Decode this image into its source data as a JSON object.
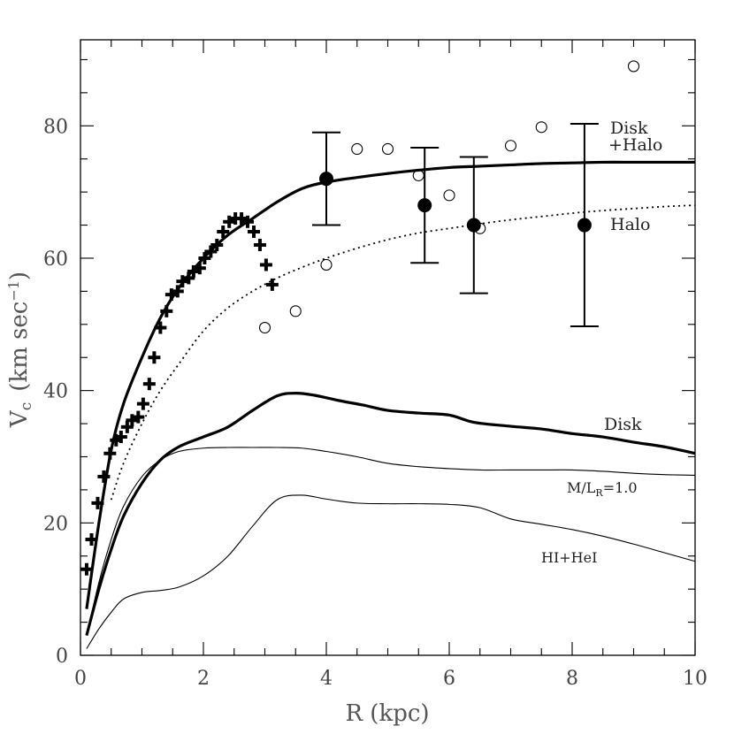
{
  "chart_data": {
    "type": "scatter",
    "xlabel": "R (kpc)",
    "ylabel_main": "V",
    "ylabel_sub": "c",
    "ylabel_unit": "(km sec",
    "ylabel_exp": "−1",
    "ylabel_close": ")",
    "xlim": [
      0,
      10
    ],
    "ylim": [
      0,
      93
    ],
    "x_ticks": [
      0,
      2,
      4,
      6,
      8,
      10
    ],
    "x_tick_labels": [
      "0",
      "2",
      "4",
      "6",
      "8",
      "10"
    ],
    "y_ticks": [
      0,
      20,
      40,
      60,
      80
    ],
    "y_tick_labels": [
      "0",
      "20",
      "40",
      "60",
      "80"
    ],
    "grid": false,
    "series": [
      {
        "name": "Disk +Halo",
        "style": "thick-solid",
        "x": [
          0.1,
          0.3,
          0.5,
          0.7,
          1.0,
          1.3,
          1.6,
          2.0,
          2.4,
          2.8,
          3.2,
          3.6,
          4.0,
          4.5,
          5.0,
          5.5,
          6.0,
          6.5,
          7.0,
          7.5,
          8.0,
          8.5,
          9.0,
          9.5,
          10.0
        ],
        "y": [
          7,
          20,
          31,
          38,
          45,
          51,
          55.5,
          60,
          63.5,
          66,
          68.5,
          70.5,
          71.5,
          72.2,
          72.8,
          73.3,
          73.7,
          73.9,
          74.1,
          74.3,
          74.4,
          74.5,
          74.5,
          74.5,
          74.5
        ]
      },
      {
        "name": "Halo",
        "style": "dotted",
        "x": [
          0.5,
          0.7,
          1.0,
          1.3,
          1.6,
          2.0,
          2.4,
          2.8,
          3.2,
          3.6,
          4.0,
          4.5,
          5.0,
          5.5,
          6.0,
          6.5,
          7.0,
          7.5,
          8.0,
          8.5,
          9.0,
          9.5,
          10.0
        ],
        "y": [
          23.5,
          29,
          35,
          40,
          44,
          49,
          52.5,
          55,
          57,
          58.6,
          60,
          61.5,
          62.8,
          63.8,
          64.5,
          65.2,
          65.8,
          66.3,
          66.8,
          67.2,
          67.5,
          67.8,
          68
        ]
      },
      {
        "name": "Disk",
        "style": "thick-solid",
        "x": [
          0.1,
          0.3,
          0.5,
          0.7,
          1.0,
          1.3,
          1.6,
          2.0,
          2.4,
          2.8,
          3.2,
          3.5,
          3.8,
          4.2,
          4.6,
          5.0,
          5.5,
          6.0,
          6.4,
          7.0,
          7.5,
          8.0,
          8.5,
          9.0,
          9.5,
          10.0
        ],
        "y": [
          3,
          10,
          16,
          21,
          26,
          29.5,
          31.5,
          33,
          34.5,
          37,
          39.2,
          39.6,
          39.3,
          38.5,
          37.8,
          37,
          36.6,
          36.3,
          35.2,
          34.6,
          34.2,
          33.5,
          33,
          32.2,
          31.5,
          30.5
        ]
      },
      {
        "name": "M/L_R=1.0",
        "style": "thin-solid",
        "x": [
          0.1,
          0.3,
          0.5,
          0.7,
          1.0,
          1.3,
          1.6,
          2.0,
          2.4,
          2.8,
          3.2,
          3.6,
          4.0,
          4.5,
          5.0,
          5.5,
          6.0,
          6.5,
          7.0,
          7.5,
          8.0,
          8.5,
          9.0,
          9.5,
          10.0
        ],
        "y": [
          3,
          11,
          17.5,
          22.5,
          27,
          29.5,
          30.8,
          31.3,
          31.4,
          31.4,
          31.4,
          31.3,
          30.8,
          30,
          29,
          28.5,
          28.2,
          28,
          28,
          28,
          28,
          27.8,
          27.5,
          27.3,
          27.2
        ]
      },
      {
        "name": "HI+HeI",
        "style": "thin-solid",
        "x": [
          0.1,
          0.3,
          0.5,
          0.7,
          1.0,
          1.3,
          1.6,
          2.0,
          2.4,
          2.8,
          3.2,
          3.6,
          4.0,
          4.5,
          5.0,
          5.5,
          6.0,
          6.5,
          7.0,
          7.5,
          8.0,
          8.5,
          9.0,
          9.5,
          10.0
        ],
        "y": [
          1,
          4,
          6.5,
          8.5,
          9.5,
          9.8,
          10.3,
          12,
          15,
          19.5,
          23.5,
          24.2,
          23.6,
          23,
          22.9,
          22.9,
          22.8,
          22.3,
          20.6,
          19.8,
          19,
          18,
          16.8,
          15.5,
          14.2
        ]
      }
    ],
    "points_plus": {
      "x": [
        0.1,
        0.18,
        0.28,
        0.38,
        0.48,
        0.58,
        0.66,
        0.76,
        0.84,
        0.94,
        1.02,
        1.12,
        1.2,
        1.3,
        1.4,
        1.48,
        1.58,
        1.66,
        1.76,
        1.84,
        1.94,
        2.02,
        2.12,
        2.22,
        2.32,
        2.42,
        2.52,
        2.62,
        2.72,
        2.82,
        2.92,
        3.02,
        3.12
      ],
      "y": [
        13,
        17.5,
        23,
        27,
        30.5,
        32.5,
        33,
        34.5,
        35.5,
        36,
        38,
        41,
        45,
        49.5,
        52,
        54.5,
        55,
        56.5,
        57,
        58,
        58.5,
        60,
        61,
        62,
        64,
        65.5,
        66,
        66,
        65.5,
        64,
        62,
        59,
        56
      ]
    },
    "points_open": {
      "x": [
        3.0,
        3.5,
        4.0,
        4.5,
        5.0,
        5.5,
        6.0,
        6.5,
        7.0,
        7.5,
        9.0
      ],
      "y": [
        49.5,
        52,
        59,
        76.5,
        76.5,
        72.5,
        69.5,
        64.5,
        77,
        79.8,
        89
      ]
    },
    "points_errorbar": {
      "x": [
        4.0,
        5.6,
        6.4,
        8.2
      ],
      "y": [
        72,
        68,
        65,
        65
      ],
      "yerr": [
        7,
        8.7,
        10.3,
        15.3
      ]
    },
    "annotations": {
      "disk_halo_line1": "Disk",
      "disk_halo_line2": "+Halo",
      "halo": "Halo",
      "disk": "Disk",
      "ml_main": "M/L",
      "ml_sub": "R",
      "ml_value": "=1.0",
      "hi": "HI+HeI"
    }
  }
}
